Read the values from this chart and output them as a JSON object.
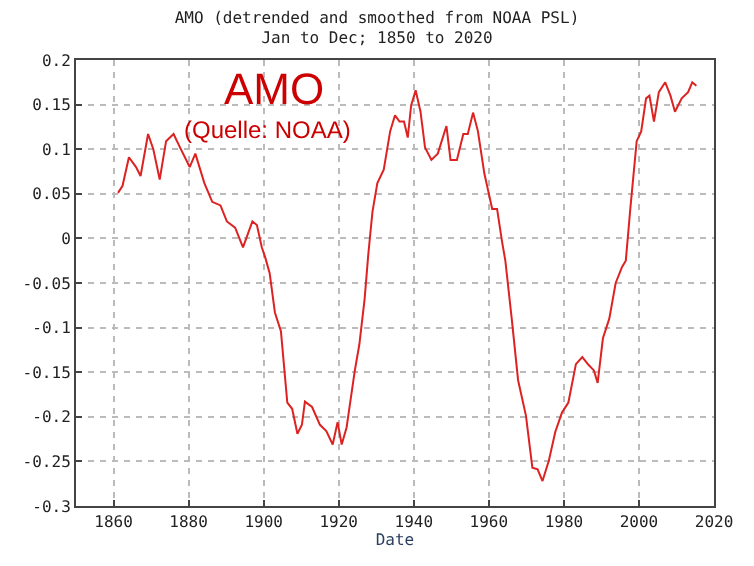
{
  "chart_data": {
    "type": "line",
    "title": "AMO (detrended and smoothed from NOAA PSL)",
    "subtitle": "Jan to Dec; 1850 to 2020",
    "xlabel": "Date",
    "annotations": [
      "AMO",
      "(Quelle: NOAA)"
    ],
    "x": [
      1861.2,
      1862.4,
      1864.1,
      1866,
      1867.2,
      1869.2,
      1870.6,
      1872.3,
      1874,
      1876,
      1877.7,
      1880.3,
      1881.8,
      1884.2,
      1886.3,
      1888.5,
      1890.2,
      1892.4,
      1894.5,
      1897,
      1898.2,
      1899.5,
      1900.4,
      1901.6,
      1903,
      1904.6,
      1906.3,
      1907.6,
      1909,
      1910.2,
      1911,
      1912.9,
      1915,
      1916.7,
      1918.4,
      1919.7,
      1920.8,
      1922.1,
      1924.3,
      1925.5,
      1926.9,
      1927.9,
      1929,
      1930.3,
      1932,
      1933.7,
      1935,
      1936.2,
      1937.4,
      1938.4,
      1939.3,
      1940.5,
      1941.8,
      1943,
      1944.7,
      1946.4,
      1948.7,
      1949.8,
      1951.5,
      1953.2,
      1954.4,
      1955.8,
      1957.1,
      1958.8,
      1960.9,
      1962.2,
      1963.5,
      1964.4,
      1966.1,
      1967.8,
      1969.9,
      1971.6,
      1973,
      1974.3,
      1976,
      1977.7,
      1979.5,
      1981.2,
      1983.2,
      1984.9,
      1986.6,
      1988,
      1989,
      1990.4,
      1992.1,
      1993.8,
      1995.5,
      1996.5,
      1997.7,
      1999.4,
      2000.6,
      2001.9,
      2002.8,
      2004,
      2005.3,
      2007,
      2008.4,
      2009.6,
      2011.4,
      2013.1,
      2014.2,
      2015.3
    ],
    "series": [
      {
        "color": "#dd2222",
        "values": [
          0.051,
          0.059,
          0.091,
          0.08,
          0.07,
          0.117,
          0.1,
          0.066,
          0.109,
          0.117,
          0.102,
          0.08,
          0.095,
          0.062,
          0.041,
          0.037,
          0.019,
          0.012,
          -0.01,
          0.019,
          0.015,
          -0.01,
          -0.021,
          -0.039,
          -0.083,
          -0.104,
          -0.184,
          -0.191,
          -0.219,
          -0.209,
          -0.183,
          -0.189,
          -0.209,
          -0.216,
          -0.231,
          -0.206,
          -0.231,
          -0.212,
          -0.148,
          -0.119,
          -0.068,
          -0.017,
          0.03,
          0.062,
          0.077,
          0.12,
          0.138,
          0.131,
          0.131,
          0.113,
          0.149,
          0.166,
          0.142,
          0.102,
          0.088,
          0.095,
          0.126,
          0.088,
          0.088,
          0.117,
          0.117,
          0.141,
          0.12,
          0.073,
          0.033,
          0.033,
          -0.003,
          -0.025,
          -0.09,
          -0.159,
          -0.199,
          -0.257,
          -0.259,
          -0.272,
          -0.249,
          -0.217,
          -0.195,
          -0.184,
          -0.141,
          -0.133,
          -0.142,
          -0.148,
          -0.162,
          -0.112,
          -0.09,
          -0.05,
          -0.032,
          -0.025,
          0.033,
          0.109,
          0.12,
          0.157,
          0.16,
          0.131,
          0.164,
          0.175,
          0.16,
          0.142,
          0.157,
          0.164,
          0.175,
          0.171
        ]
      }
    ],
    "xlim": [
      1850,
      2020
    ],
    "xticks": [
      1860,
      1880,
      1900,
      1920,
      1940,
      1960,
      1980,
      2000,
      2020
    ],
    "ylim": [
      -0.3,
      0.2
    ],
    "yticks": [
      {
        "value": -0.3,
        "label": "-0.3"
      },
      {
        "value": -0.25,
        "label": "-0.25"
      },
      {
        "value": -0.2,
        "label": "-0.2"
      },
      {
        "value": -0.15,
        "label": "-0.15"
      },
      {
        "value": -0.1,
        "label": "-0.1"
      },
      {
        "value": -0.05,
        "label": "-0.05"
      },
      0,
      {
        "value": 0.05,
        "label": "0.05"
      },
      {
        "value": 0.1,
        "label": "0.1"
      },
      {
        "value": 0.15,
        "label": "0.15"
      },
      {
        "value": 0.2,
        "label": "0.2"
      }
    ],
    "grid": true,
    "marker": "none",
    "line_style": "solid"
  }
}
